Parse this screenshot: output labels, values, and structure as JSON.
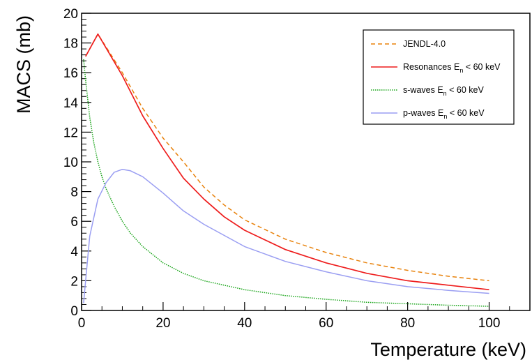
{
  "chart_data": {
    "type": "line",
    "xlabel": "Temperature (keV)",
    "ylabel": "MACS (mb)",
    "xlim": [
      0,
      110
    ],
    "ylim": [
      0,
      20
    ],
    "x_ticks": [
      0,
      20,
      40,
      60,
      80,
      100
    ],
    "y_ticks": [
      0,
      2,
      4,
      6,
      8,
      10,
      12,
      14,
      16,
      18,
      20
    ],
    "grid": false,
    "legend_position": "top-right",
    "series": [
      {
        "name": "JENDL-4.0",
        "name_subscript": "",
        "name_suffix": "",
        "color": "#e8820c",
        "dash": "dashed",
        "x": [
          1,
          4,
          10,
          15,
          20,
          25,
          30,
          35,
          40,
          50,
          60,
          70,
          80,
          90,
          100
        ],
        "y": [
          17.1,
          18.6,
          16.0,
          13.6,
          11.6,
          10.0,
          8.3,
          7.1,
          6.1,
          4.8,
          3.9,
          3.2,
          2.7,
          2.3,
          2.0
        ]
      },
      {
        "name": "Resonances E",
        "name_subscript": "n",
        "name_suffix": " < 60 keV",
        "color": "#ee1c1c",
        "dash": "solid",
        "x": [
          1,
          4,
          10,
          15,
          20,
          25,
          30,
          35,
          40,
          50,
          60,
          70,
          80,
          90,
          100
        ],
        "y": [
          17.1,
          18.6,
          15.8,
          13.1,
          10.9,
          8.9,
          7.5,
          6.3,
          5.4,
          4.1,
          3.2,
          2.5,
          2.0,
          1.7,
          1.4
        ]
      },
      {
        "name": "s-waves E",
        "name_subscript": "n",
        "name_suffix": " < 60 keV",
        "color": "#1aa51a",
        "dash": "dotted",
        "x": [
          0.5,
          1,
          2,
          3,
          4,
          5,
          6,
          8,
          10,
          12,
          15,
          20,
          25,
          30,
          40,
          50,
          60,
          70,
          80,
          90,
          100
        ],
        "y": [
          16.9,
          15.5,
          13.0,
          11.3,
          10.0,
          9.0,
          8.2,
          7.0,
          6.0,
          5.2,
          4.3,
          3.2,
          2.5,
          2.0,
          1.4,
          1.0,
          0.75,
          0.55,
          0.45,
          0.35,
          0.28
        ]
      },
      {
        "name": "p-waves E",
        "name_subscript": "n",
        "name_suffix": " < 60 keV",
        "color": "#9a9ef2",
        "dash": "solid",
        "x": [
          0.5,
          1,
          2,
          4,
          6,
          8,
          10,
          12,
          15,
          20,
          25,
          30,
          40,
          50,
          60,
          70,
          80,
          90,
          100
        ],
        "y": [
          0.5,
          2.0,
          5.0,
          7.5,
          8.6,
          9.3,
          9.5,
          9.4,
          9.0,
          7.9,
          6.7,
          5.8,
          4.3,
          3.3,
          2.6,
          2.0,
          1.6,
          1.35,
          1.15
        ]
      }
    ]
  }
}
